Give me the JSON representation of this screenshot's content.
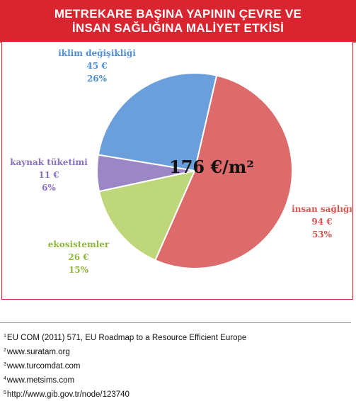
{
  "title": {
    "line1": "METREKARE BAŞINA YAPININ ÇEVRE VE",
    "line2": "İNSAN SAĞLIĞINA MALİYET ETKİSİ"
  },
  "chart_data": {
    "type": "pie",
    "center_label": "176 €/m²",
    "slices": [
      {
        "name": "insan sağlığı",
        "amount": "94 €",
        "value": 53,
        "percent": "53%",
        "color": "#de6b6b"
      },
      {
        "name": "ekosistemler",
        "amount": "26 €",
        "value": 15,
        "percent": "15%",
        "color": "#bfd77b"
      },
      {
        "name": "kaynak tüketimi",
        "amount": "11 €",
        "value": 6,
        "percent": "6%",
        "color": "#9b86c6"
      },
      {
        "name": "iklim değişikliği",
        "amount": "45 €",
        "value": 26,
        "percent": "26%",
        "color": "#6a9fdb"
      }
    ],
    "label_colors": {
      "insan sağlığı": "#d9534f",
      "ekosistemler": "#8fb63a",
      "kaynak tüketimi": "#8a6fc0",
      "iklim değişikliği": "#4f8fd6"
    }
  },
  "footnotes": [
    {
      "num": "1",
      "text": "EU COM (2011) 571, EU Roadmap to a Resource Efficient Europe"
    },
    {
      "num": "2",
      "text": "www.suratam.org"
    },
    {
      "num": "3",
      "text": "www.turcomdat.com"
    },
    {
      "num": "4",
      "text": "www.metsims.com"
    },
    {
      "num": "5",
      "text": "http://www.gib.gov.tr/node/123740"
    }
  ]
}
